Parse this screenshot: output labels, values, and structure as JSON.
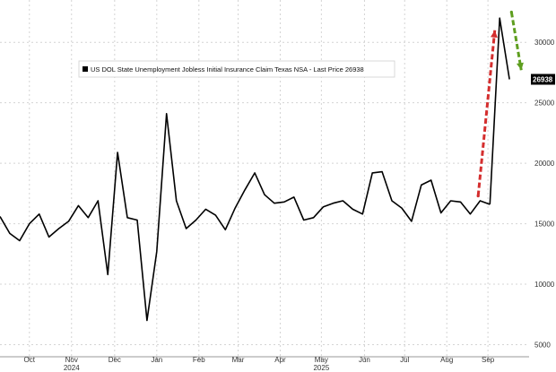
{
  "chart_data": {
    "type": "line",
    "title": "",
    "xlabel": "",
    "ylabel": "",
    "ylim": [
      4000,
      33500
    ],
    "yticks": [
      5000,
      10000,
      15000,
      20000,
      25000,
      30000
    ],
    "ytick_labels": [
      "5000",
      "10000",
      "15000",
      "20000",
      "25000",
      "30000"
    ],
    "y_axis_side": "right",
    "grid": true,
    "legend": {
      "placement": "top-left",
      "entries": [
        "US DOL State Unemployment Jobless Initial Insurance Claim Texas NSA - Last Price 26938"
      ]
    },
    "x_tick_labels": [
      "Oct",
      "Nov",
      "Dec",
      "Jan",
      "Feb",
      "Mar",
      "Apr",
      "May",
      "Jun",
      "Jul",
      "Aug",
      "Sep"
    ],
    "x_tick_positions": [
      3,
      7.3,
      11.7,
      16,
      20.3,
      24.3,
      28.6,
      32.8,
      37.2,
      41.3,
      45.6,
      49.8
    ],
    "year_labels": [
      {
        "label": "2024",
        "position": 7.3
      },
      {
        "label": "2025",
        "position": 32.8
      }
    ],
    "series": [
      {
        "name": "US DOL State Unemployment Jobless Initial Insurance Claim Texas NSA",
        "color": "#000000",
        "x": [
          0,
          1,
          2,
          3,
          4,
          5,
          6,
          7,
          8,
          9,
          10,
          11,
          12,
          13,
          14,
          15,
          16,
          17,
          18,
          19,
          20,
          21,
          22,
          23,
          24,
          25,
          26,
          27,
          28,
          29,
          30,
          31,
          32,
          33,
          34,
          35,
          36,
          37,
          38,
          39,
          40,
          41,
          42,
          43,
          44,
          45,
          46,
          47,
          48,
          49,
          50
        ],
        "values": [
          15600,
          14200,
          13600,
          15000,
          15800,
          13900,
          14600,
          15200,
          16500,
          15500,
          16900,
          10800,
          20900,
          15500,
          15300,
          7000,
          12700,
          24100,
          16900,
          14600,
          15300,
          16200,
          15700,
          14500,
          16300,
          17800,
          19200,
          17400,
          16700,
          16800,
          17200,
          15300,
          15500,
          16400,
          16700,
          16900,
          16200,
          15800,
          19200,
          19300,
          16900,
          16300,
          15200,
          18200,
          18600,
          15900,
          16900,
          16800,
          15800,
          16900,
          16600
        ]
      },
      {
        "name": "",
        "color": "#000000",
        "x": [
          50,
          51,
          52
        ],
        "values": [
          16600,
          32000,
          26938
        ]
      }
    ],
    "last_value_label": "26938",
    "last_value": 26938,
    "annotations": [
      {
        "type": "arrow",
        "style": "dashed",
        "color": "#d42e2e",
        "direction": "up",
        "x_start": 48.8,
        "y_start": 17300,
        "x_end": 50.5,
        "y_end": 31000
      },
      {
        "type": "arrow",
        "style": "dashed",
        "color": "#5e9e1f",
        "direction": "down",
        "x_start": 52.2,
        "y_start": 32500,
        "x_end": 53.2,
        "y_end": 27700
      }
    ],
    "x_domain": [
      0,
      54
    ]
  }
}
